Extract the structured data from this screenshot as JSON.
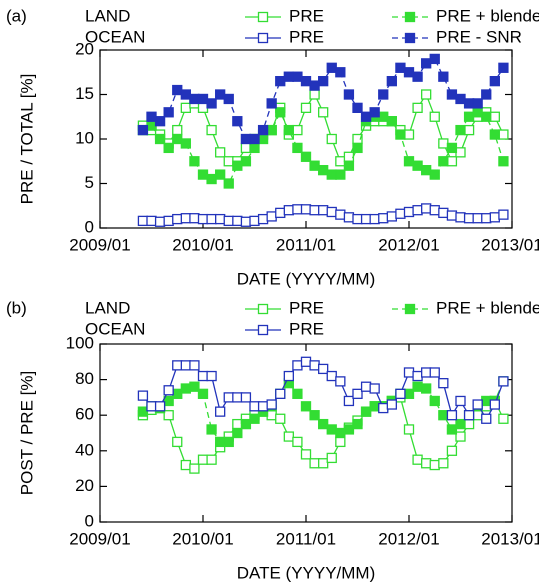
{
  "chart_data": [
    {
      "type": "line",
      "panel_label": "(a)",
      "x_label": "DATE (YYYY/MM)",
      "y_label": "PRE / TOTAL [%]",
      "x": [
        "2009/06",
        "2009/07",
        "2009/08",
        "2009/09",
        "2009/10",
        "2009/11",
        "2009/12",
        "2010/01",
        "2010/02",
        "2010/03",
        "2010/04",
        "2010/05",
        "2010/06",
        "2010/07",
        "2010/08",
        "2010/09",
        "2010/10",
        "2010/11",
        "2010/12",
        "2011/01",
        "2011/02",
        "2011/03",
        "2011/04",
        "2011/05",
        "2011/06",
        "2011/07",
        "2011/08",
        "2011/09",
        "2011/10",
        "2011/11",
        "2011/12",
        "2012/01",
        "2012/02",
        "2012/03",
        "2012/04",
        "2012/05",
        "2012/06",
        "2012/07",
        "2012/08",
        "2012/09",
        "2012/10",
        "2012/11",
        "2012/12"
      ],
      "xlim": [
        "2009/01",
        "2013/01"
      ],
      "xticks": [
        "2009/01",
        "2010/01",
        "2011/01",
        "2012/01",
        "2013/01"
      ],
      "ylim": [
        0,
        20
      ],
      "yticks": [
        0,
        5,
        10,
        15,
        20
      ],
      "series": [
        {
          "name": "PRE",
          "group": "LAND",
          "color": "#33dd33",
          "marker": "open",
          "dashed": false,
          "values": [
            11.5,
            11,
            10.5,
            9.5,
            11,
            13.5,
            14,
            13.5,
            11,
            8.5,
            7.5,
            7.5,
            9,
            10,
            10.5,
            11,
            13.5,
            10.5,
            11,
            13.5,
            15,
            13,
            10,
            7.5,
            8,
            10,
            11.5,
            12,
            12,
            12,
            11,
            10.5,
            13.5,
            15,
            12.5,
            9.5,
            7.5,
            8.5,
            11,
            12.5,
            13,
            12.5,
            10.5
          ]
        },
        {
          "name": "PRE + blended_albedo",
          "group": "LAND",
          "color": "#33dd33",
          "marker": "filled",
          "dashed": true,
          "values": [
            11,
            11.5,
            10,
            9,
            10,
            9.5,
            7.5,
            6,
            5.5,
            6,
            5,
            7,
            7.5,
            9,
            10,
            11,
            13,
            11,
            9,
            8,
            7,
            6.5,
            6,
            6,
            7,
            9,
            12,
            12.5,
            12.5,
            12,
            10.5,
            7.5,
            7,
            6.5,
            6,
            7.5,
            9,
            11,
            12.5,
            13,
            12.5,
            10.5,
            7.5
          ]
        },
        {
          "name": "PRE",
          "group": "OCEAN",
          "color": "#2233bb",
          "marker": "open",
          "dashed": false,
          "values": [
            0.8,
            0.8,
            0.7,
            0.8,
            1,
            1.1,
            1.1,
            1,
            1,
            1,
            0.8,
            0.8,
            0.7,
            0.8,
            1,
            1.3,
            1.7,
            2,
            2.1,
            2.1,
            2,
            2,
            1.8,
            1.5,
            1.2,
            1,
            1,
            1,
            1.1,
            1.3,
            1.6,
            1.8,
            2,
            2.2,
            2,
            1.7,
            1.4,
            1.2,
            1.1,
            1.1,
            1.1,
            1.2,
            1.5
          ]
        },
        {
          "name": "PRE - SNR",
          "group": "OCEAN",
          "color": "#2233bb",
          "marker": "filled",
          "dashed": true,
          "values": [
            11,
            12.5,
            12,
            13,
            15.5,
            15,
            14.5,
            14.5,
            14,
            15,
            14.5,
            12,
            10,
            10,
            11,
            14,
            16.5,
            17,
            17,
            16.5,
            16,
            16.5,
            18,
            17.5,
            15,
            13.5,
            12.5,
            13,
            15,
            16.5,
            18,
            17.5,
            17,
            18.5,
            19,
            17,
            15,
            14.5,
            14,
            14,
            15,
            16.5,
            18
          ]
        }
      ]
    },
    {
      "type": "line",
      "panel_label": "(b)",
      "x_label": "DATE (YYYY/MM)",
      "y_label": "POST / PRE [%]",
      "x": [
        "2009/06",
        "2009/07",
        "2009/08",
        "2009/09",
        "2009/10",
        "2009/11",
        "2009/12",
        "2010/01",
        "2010/02",
        "2010/03",
        "2010/04",
        "2010/05",
        "2010/06",
        "2010/07",
        "2010/08",
        "2010/09",
        "2010/10",
        "2010/11",
        "2010/12",
        "2011/01",
        "2011/02",
        "2011/03",
        "2011/04",
        "2011/05",
        "2011/06",
        "2011/07",
        "2011/08",
        "2011/09",
        "2011/10",
        "2011/11",
        "2011/12",
        "2012/01",
        "2012/02",
        "2012/03",
        "2012/04",
        "2012/05",
        "2012/06",
        "2012/07",
        "2012/08",
        "2012/09",
        "2012/10",
        "2012/11",
        "2012/12"
      ],
      "xlim": [
        "2009/01",
        "2013/01"
      ],
      "xticks": [
        "2009/01",
        "2010/01",
        "2011/01",
        "2012/01",
        "2013/01"
      ],
      "ylim": [
        0,
        100
      ],
      "yticks": [
        0,
        20,
        40,
        60,
        80,
        100
      ],
      "series": [
        {
          "name": "PRE",
          "group": "LAND",
          "color": "#33dd33",
          "marker": "open",
          "dashed": false,
          "values": [
            60,
            63,
            64,
            60,
            45,
            32,
            30,
            35,
            35,
            42,
            48,
            55,
            58,
            60,
            62,
            60,
            58,
            48,
            45,
            38,
            33,
            33,
            36,
            45,
            53,
            57,
            62,
            65,
            65,
            68,
            70,
            52,
            35,
            33,
            32,
            33,
            40,
            48,
            55,
            60,
            65,
            68,
            58
          ]
        },
        {
          "name": "PRE + blended_albedo",
          "group": "LAND",
          "color": "#33dd33",
          "marker": "filled",
          "dashed": true,
          "values": [
            62,
            65,
            64,
            68,
            72,
            75,
            76,
            72,
            52,
            45,
            45,
            50,
            55,
            58,
            62,
            65,
            72,
            78,
            72,
            65,
            60,
            55,
            52,
            50,
            52,
            55,
            62,
            65,
            65,
            68,
            72,
            72,
            76,
            75,
            68,
            60,
            52,
            55,
            60,
            65,
            68,
            68,
            79
          ]
        },
        {
          "name": "PRE",
          "group": "OCEAN",
          "color": "#2233bb",
          "marker": "open",
          "dashed": false,
          "values": [
            71,
            65,
            65,
            74,
            88,
            88,
            88,
            82,
            82,
            62,
            70,
            70,
            70,
            65,
            65,
            66,
            72,
            82,
            88,
            90,
            88,
            86,
            82,
            79,
            68,
            72,
            76,
            75,
            64,
            66,
            72,
            84,
            82,
            84,
            84,
            78,
            60,
            68,
            60,
            66,
            58,
            66,
            79
          ]
        }
      ]
    }
  ]
}
